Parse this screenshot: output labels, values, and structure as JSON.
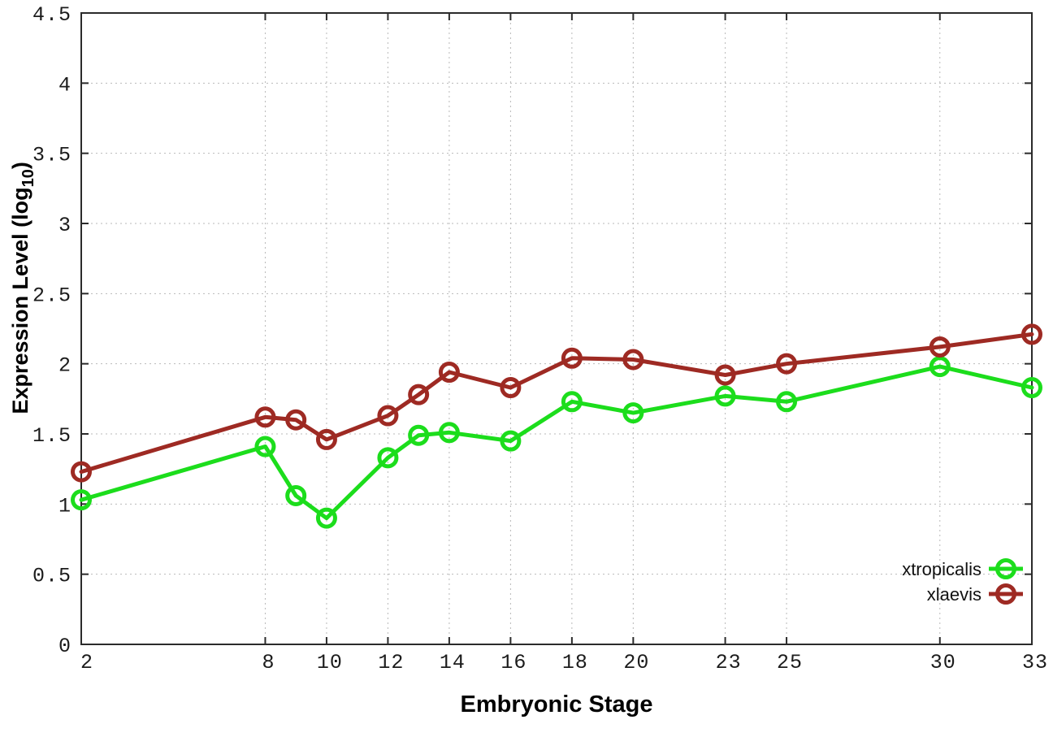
{
  "chart_data": {
    "type": "line",
    "title": "",
    "xlabel": "Embryonic Stage",
    "ylabel": {
      "prefix": "Expression Level (log",
      "subscript": "10",
      "suffix": ")"
    },
    "x": [
      2,
      8,
      9,
      10,
      12,
      13,
      14,
      16,
      18,
      20,
      23,
      25,
      30,
      33
    ],
    "series": [
      {
        "name": "xtropicalis",
        "color": "#1cdd1c",
        "values": [
          1.03,
          1.41,
          1.06,
          0.9,
          1.33,
          1.49,
          1.51,
          1.45,
          1.73,
          1.65,
          1.77,
          1.73,
          1.98,
          1.83
        ]
      },
      {
        "name": "xlaevis",
        "color": "#9e2a23",
        "values": [
          1.23,
          1.62,
          1.6,
          1.46,
          1.63,
          1.78,
          1.94,
          1.83,
          2.04,
          2.03,
          1.92,
          2.0,
          2.12,
          2.21
        ]
      }
    ],
    "xlim": [
      2,
      33
    ],
    "ylim": [
      0,
      4.5
    ],
    "x_ticks": [
      2,
      8,
      10,
      12,
      14,
      16,
      18,
      20,
      23,
      25,
      30,
      33
    ],
    "x_tick_labels": [
      "2",
      "8",
      "10",
      "12",
      "14",
      "16",
      "18",
      "20",
      "23",
      "25",
      "30",
      "33"
    ],
    "y_ticks": [
      0,
      0.5,
      1,
      1.5,
      2,
      2.5,
      3,
      3.5,
      4,
      4.5
    ],
    "y_tick_labels": [
      "0",
      "0.5",
      "1",
      "1.5",
      "2",
      "2.5",
      "3",
      "3.5",
      "4",
      "4.5"
    ],
    "grid": true,
    "legend_position": "bottom-right",
    "legend_entries": [
      "xtropicalis",
      "xlaevis"
    ],
    "marker": "open-circle"
  },
  "style_colors": {
    "background": "#ffffff",
    "border": "#2b2b2b",
    "grid": "#b9b9b9",
    "tick_label": "#1c1c1c",
    "axis_label": "#000000"
  }
}
